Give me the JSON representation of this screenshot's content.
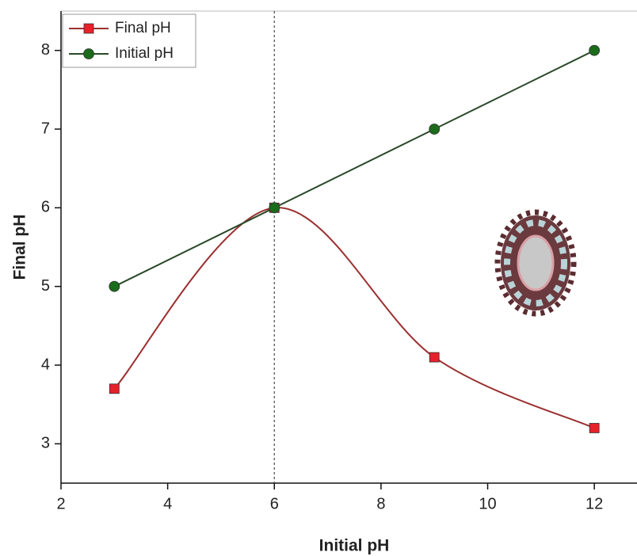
{
  "chart_data": {
    "type": "line",
    "x_label": "Initial pH",
    "y_label": "Final pH",
    "x": [
      3,
      6,
      9,
      12
    ],
    "series": [
      {
        "name": "Final pH",
        "color": "#e8202a",
        "line_color": "#9b3030",
        "marker": "square",
        "smooth": true,
        "values": [
          3.7,
          6.0,
          4.1,
          3.2
        ]
      },
      {
        "name": "Initial pH",
        "color": "#1a6b1a",
        "line_color": "#2a4a2a",
        "marker": "circle",
        "smooth": false,
        "values": [
          5,
          6,
          7,
          8
        ]
      }
    ],
    "xlim": [
      2,
      12.8
    ],
    "xticks": [
      2,
      4,
      6,
      8,
      10,
      12
    ],
    "ylim": [
      2.5,
      8.5
    ],
    "yticks": [
      3,
      4,
      5,
      6,
      7,
      8
    ],
    "reference_line_x": 6,
    "legend": "top-left"
  }
}
